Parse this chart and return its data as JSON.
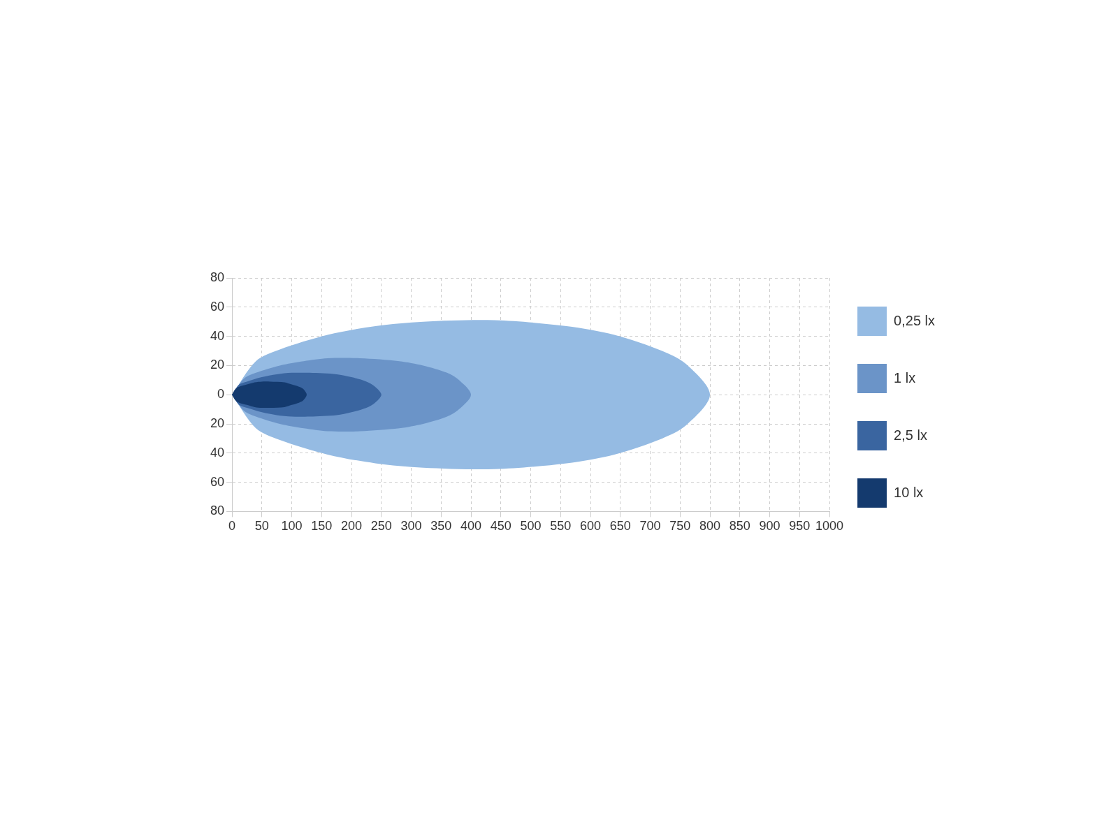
{
  "chart_data": {
    "type": "area",
    "xlim": [
      0,
      1000
    ],
    "xticks": [
      0,
      50,
      100,
      150,
      200,
      250,
      300,
      350,
      400,
      450,
      500,
      550,
      600,
      650,
      700,
      750,
      800,
      850,
      900,
      950,
      1000
    ],
    "ylim": [
      -80,
      80
    ],
    "yticks": [
      {
        "value": -80,
        "label": "80"
      },
      {
        "value": -60,
        "label": "60"
      },
      {
        "value": -40,
        "label": "40"
      },
      {
        "value": -20,
        "label": "20"
      },
      0,
      20,
      40,
      60,
      80
    ],
    "grid": true,
    "legend": "right",
    "series": [
      {
        "name": "0,25 lx",
        "color": "#95bbe3",
        "x": [
          0,
          40,
          80,
          160,
          240,
          320,
          440,
          560,
          640,
          720,
          760,
          800,
          760,
          720,
          640,
          560,
          440,
          320,
          240,
          160,
          80,
          40,
          0
        ],
        "values": [
          0,
          23,
          31,
          41,
          47,
          50,
          51,
          47,
          41,
          30,
          21,
          0,
          -21,
          -30,
          -41,
          -47,
          -51,
          -50,
          -47,
          -41,
          -31,
          -23,
          0
        ]
      },
      {
        "name": "1 lx",
        "color": "#6b94c8",
        "x": [
          0,
          20,
          40,
          80,
          120,
          160,
          214,
          280,
          320,
          360,
          380,
          400,
          380,
          360,
          320,
          280,
          214,
          160,
          120,
          80,
          40,
          20,
          0
        ],
        "values": [
          0,
          11,
          15,
          20,
          23,
          25,
          25,
          23,
          20,
          15,
          10,
          0,
          -10,
          -15,
          -20,
          -23,
          -25,
          -25,
          -23,
          -20,
          -15,
          -11,
          0
        ]
      },
      {
        "name": "2,5 lx",
        "color": "#3a65a0",
        "x": [
          0,
          12,
          25,
          50,
          75,
          100,
          130,
          175,
          200,
          225,
          238,
          250,
          238,
          225,
          200,
          175,
          130,
          100,
          75,
          50,
          25,
          12,
          0
        ],
        "values": [
          0,
          7,
          9,
          12,
          14,
          15,
          15,
          14,
          12,
          9,
          6,
          0,
          -6,
          -9,
          -12,
          -14,
          -15,
          -15,
          -14,
          -12,
          -9,
          -7,
          0
        ]
      },
      {
        "name": "10 lx",
        "color": "#143a6e",
        "x": [
          0,
          6,
          12,
          25,
          38,
          50,
          64,
          88,
          100,
          112,
          119,
          125,
          119,
          112,
          100,
          88,
          64,
          50,
          38,
          25,
          12,
          6,
          0
        ],
        "values": [
          0,
          4,
          5.5,
          7,
          8.5,
          9,
          9,
          8.5,
          7,
          5.5,
          4,
          0,
          -4,
          -5.5,
          -7,
          -8.5,
          -9,
          -9,
          -8.5,
          -7,
          -5.5,
          -4,
          0
        ]
      }
    ]
  }
}
